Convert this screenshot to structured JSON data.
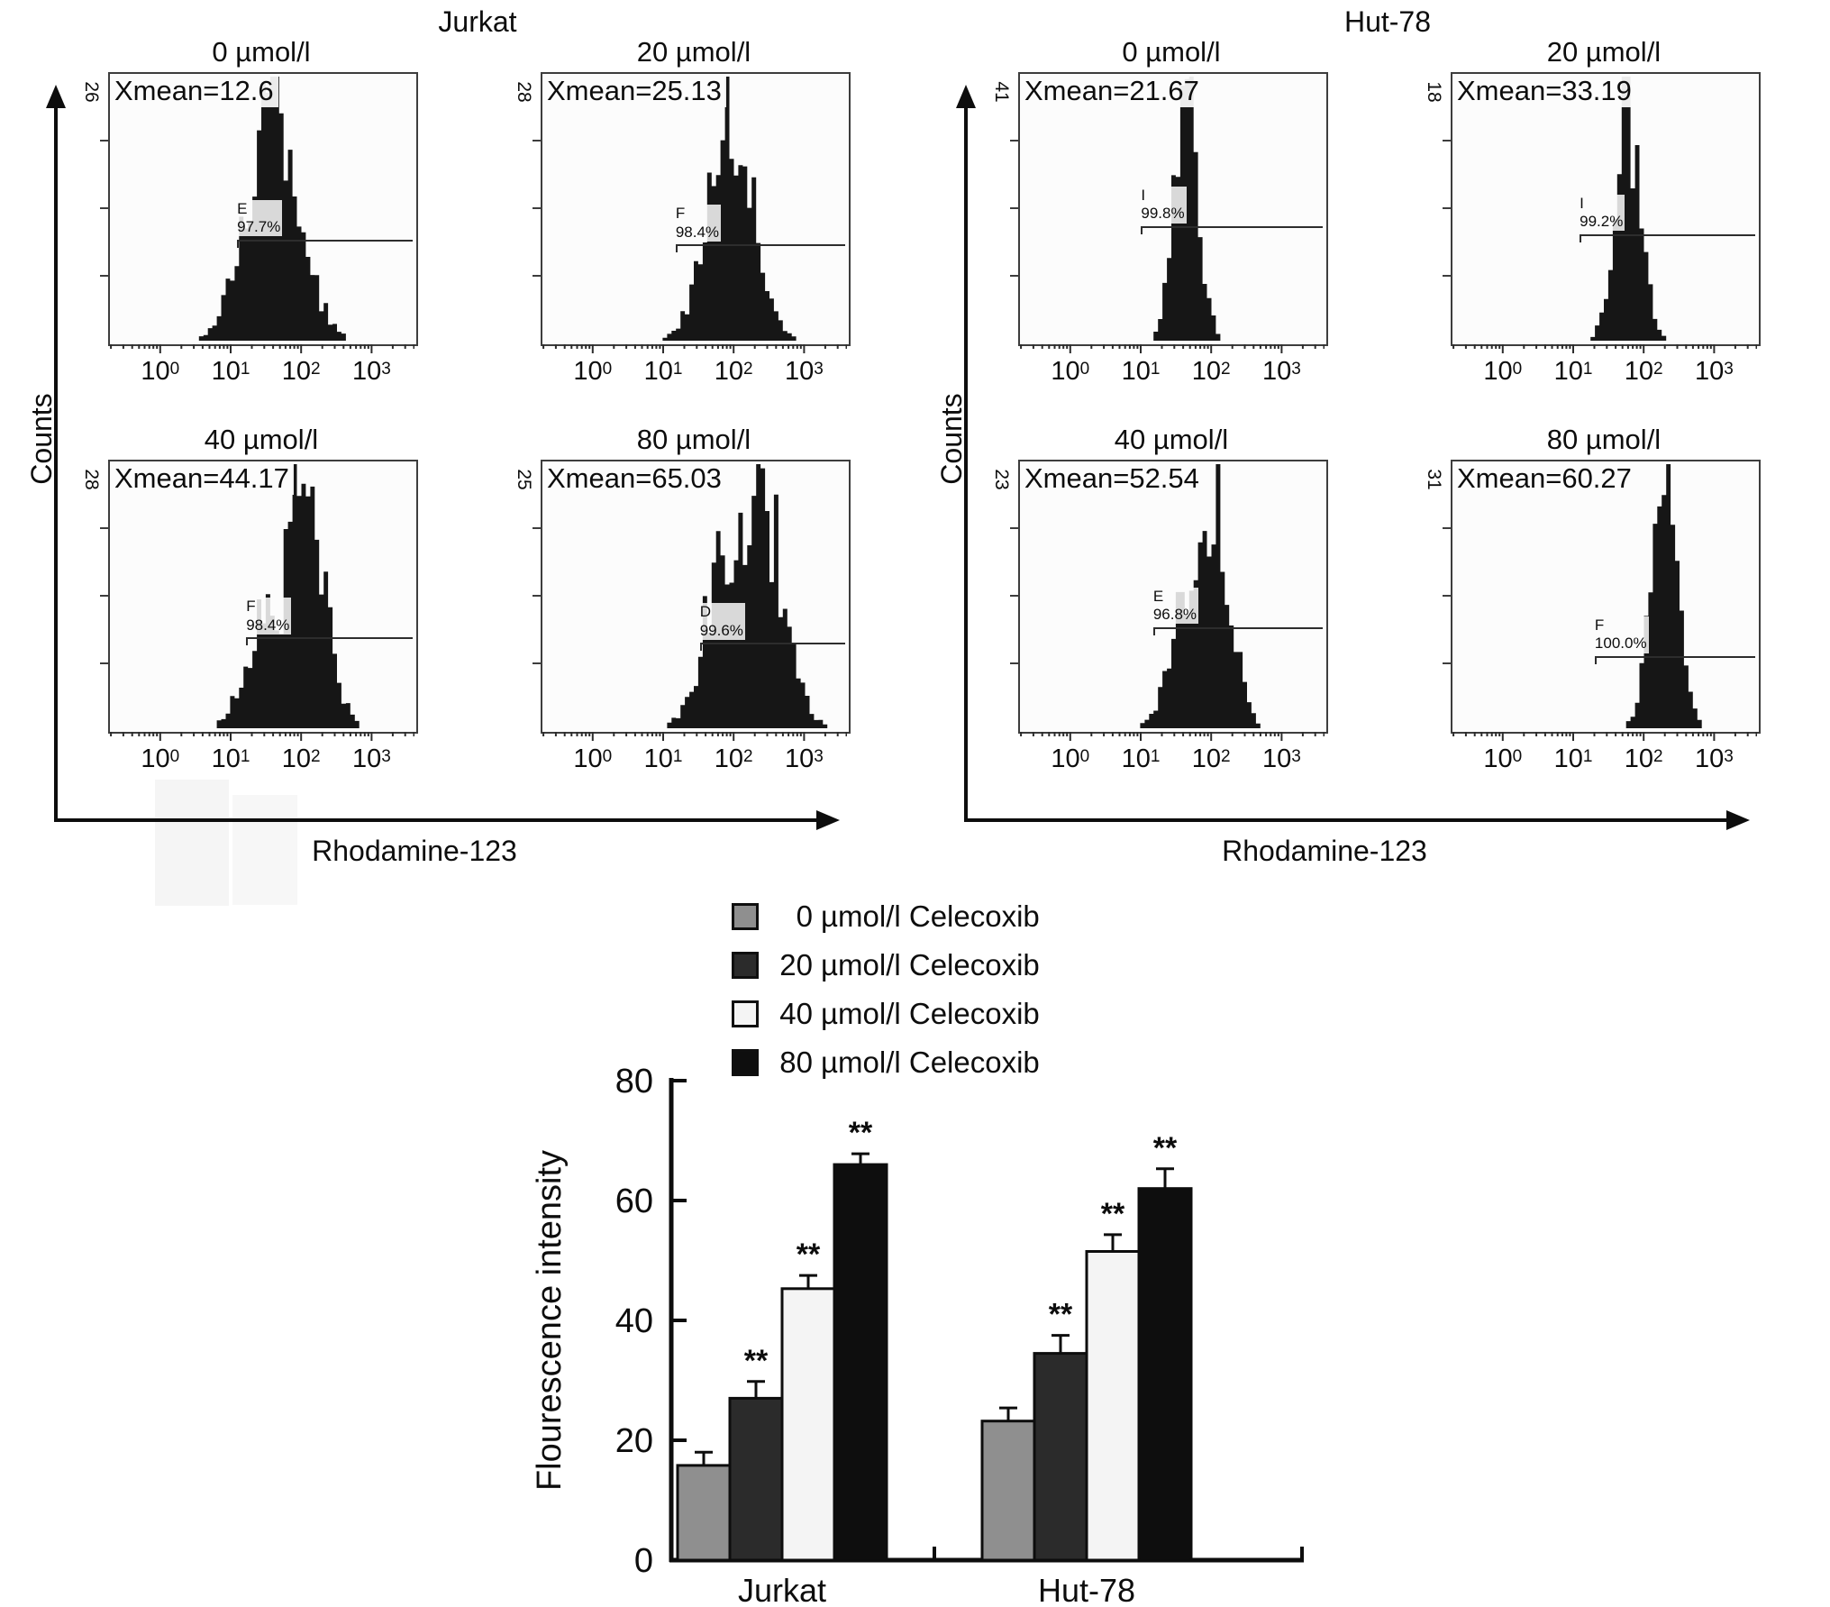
{
  "figure": {
    "flow": {
      "y_axis_label": "Counts",
      "x_axis_label": "Rhodamine-123",
      "x_ticks": [
        {
          "b": "10",
          "e": "0"
        },
        {
          "b": "10",
          "e": "1"
        },
        {
          "b": "10",
          "e": "2"
        },
        {
          "b": "10",
          "e": "3"
        }
      ],
      "groups": [
        {
          "title": "Jurkat",
          "panels": [
            {
              "title": "0 µmol/l",
              "ymax": "26",
              "xmean": "Xmean=12.6",
              "gate_name": "E",
              "gate_percent": "97.7%",
              "peak": 0.54,
              "sigma": 0.085,
              "gate_x": 0.42,
              "gate_y": 0.62,
              "seed": 1
            },
            {
              "title": "20 µmol/l",
              "ymax": "28",
              "xmean": "Xmean=25.13",
              "gate_name": "F",
              "gate_percent": "98.4%",
              "peak": 0.62,
              "sigma": 0.075,
              "gate_x": 0.44,
              "gate_y": 0.64,
              "seed": 2
            },
            {
              "title": "40 µmol/l",
              "ymax": "28",
              "xmean": "Xmean=44.17",
              "gate_name": "F",
              "gate_percent": "98.4%",
              "peak": 0.64,
              "sigma": 0.065,
              "peak2": 0.52,
              "amp2": 0.5,
              "gate_x": 0.45,
              "gate_y": 0.66,
              "seed": 3
            },
            {
              "title": "80 µmol/l",
              "ymax": "25",
              "xmean": "Xmean=65.03",
              "gate_name": "D",
              "gate_percent": "99.6%",
              "peak": 0.72,
              "sigma": 0.075,
              "peak2": 0.62,
              "amp2": 0.82,
              "gate_x": 0.52,
              "gate_y": 0.68,
              "seed": 4
            }
          ]
        },
        {
          "title": "Hut-78",
          "panels": [
            {
              "title": "0 µmol/l",
              "ymax": "41",
              "xmean": "Xmean=21.67",
              "gate_name": "I",
              "gate_percent": "99.8%",
              "peak": 0.55,
              "sigma": 0.04,
              "gate_x": 0.4,
              "gate_y": 0.57,
              "seed": 5
            },
            {
              "title": "20 µmol/l",
              "ymax": "18",
              "xmean": "Xmean=33.19",
              "gate_name": "I",
              "gate_percent": "99.2%",
              "peak": 0.58,
              "sigma": 0.042,
              "gate_x": 0.42,
              "gate_y": 0.6,
              "seed": 6
            },
            {
              "title": "40 µmol/l",
              "ymax": "23",
              "xmean": "Xmean=52.54",
              "gate_name": "E",
              "gate_percent": "96.8%",
              "peak": 0.64,
              "sigma": 0.055,
              "peak2": 0.55,
              "amp2": 0.6,
              "gate_x": 0.44,
              "gate_y": 0.62,
              "seed": 7
            },
            {
              "title": "80 µmol/l",
              "ymax": "31",
              "xmean": "Xmean=60.27",
              "gate_name": "F",
              "gate_percent": "100.0%",
              "peak": 0.7,
              "sigma": 0.045,
              "gate_x": 0.47,
              "gate_y": 0.73,
              "seed": 8
            }
          ]
        }
      ]
    }
  },
  "chart_data": {
    "type": "bar",
    "title": "",
    "categories": [
      "Jurkat",
      "Hut-78"
    ],
    "series": [
      {
        "name": "0 µmol/l Celecoxib",
        "conc": "0",
        "label": "µmol/l Celecoxib",
        "color": "#8f8f8f",
        "values": [
          15.8,
          23.2
        ],
        "errors": [
          2.2,
          2.2
        ],
        "sig": [
          "",
          ""
        ]
      },
      {
        "name": "20 µmol/l Celecoxib",
        "conc": "20",
        "label": "µmol/l Celecoxib",
        "color": "#2b2b2b",
        "values": [
          27.0,
          34.5
        ],
        "errors": [
          2.8,
          3.0
        ],
        "sig": [
          "**",
          "**"
        ]
      },
      {
        "name": "40 µmol/l Celecoxib",
        "conc": "40",
        "label": "µmol/l Celecoxib",
        "color": "#f4f4f4",
        "values": [
          45.3,
          51.5
        ],
        "errors": [
          2.2,
          2.8
        ],
        "sig": [
          "**",
          "**"
        ]
      },
      {
        "name": "80 µmol/l Celecoxib",
        "conc": "80",
        "label": "µmol/l Celecoxib",
        "color": "#0e0e0e",
        "values": [
          66.0,
          62.0
        ],
        "errors": [
          1.8,
          3.3
        ],
        "sig": [
          "**",
          "**"
        ]
      }
    ],
    "xlabel": "",
    "ylabel": "Flourescence intensity",
    "ylim": [
      0,
      80
    ],
    "yticks": [
      0,
      20,
      40,
      60,
      80
    ],
    "grid": false,
    "legend_position": "top-center",
    "significance_marker": "**"
  }
}
